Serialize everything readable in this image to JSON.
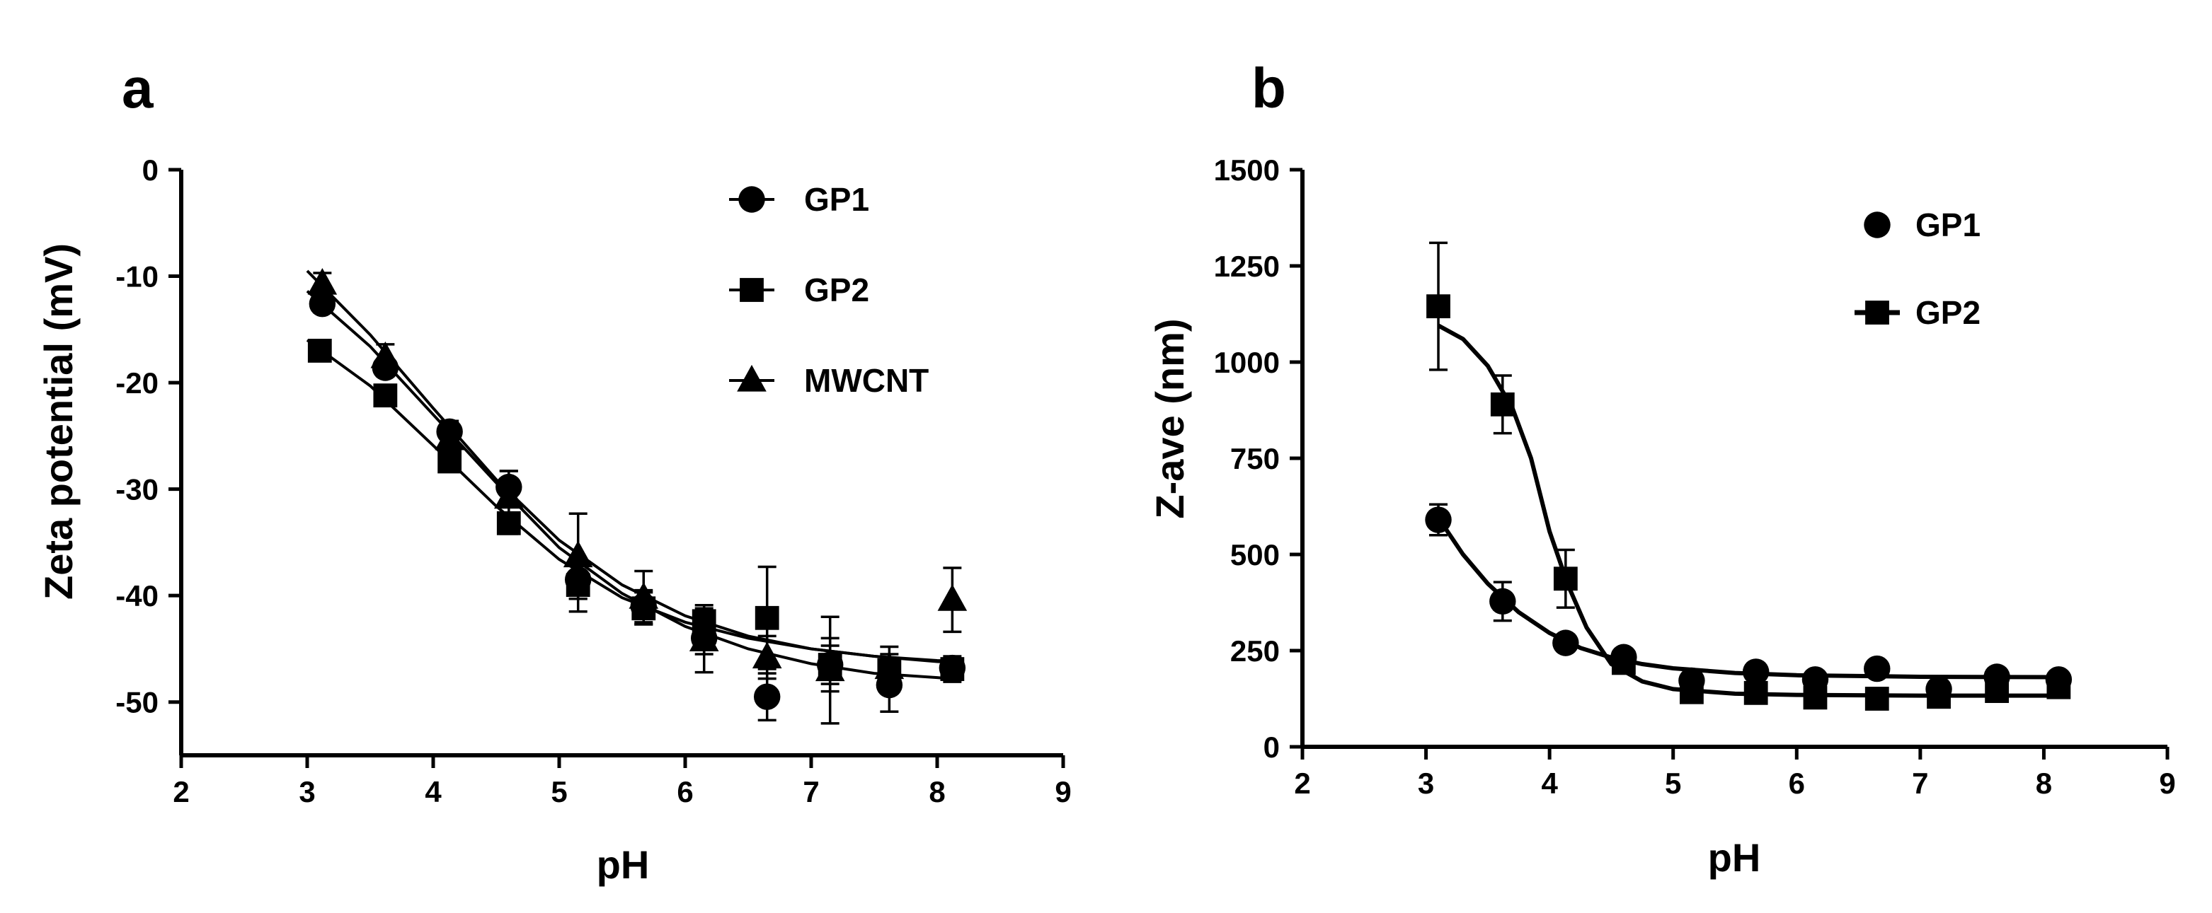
{
  "chart_data": [
    {
      "panel": "a",
      "type": "scatter",
      "xlabel": "pH",
      "ylabel": "Zeta potential (mV)",
      "xlim": [
        2,
        9
      ],
      "ylim": [
        -55,
        0
      ],
      "xticks": [
        2,
        3,
        4,
        5,
        6,
        7,
        8,
        9
      ],
      "yticks": [
        0,
        -10,
        -20,
        -30,
        -40,
        -50
      ],
      "legend_position": "top-right",
      "series": [
        {
          "name": "GP1",
          "marker": "circle",
          "legend_line": true,
          "x": [
            3.12,
            3.62,
            4.13,
            4.6,
            5.15,
            5.67,
            6.15,
            6.65,
            7.15,
            7.62,
            8.12
          ],
          "y": [
            -12.6,
            -18.6,
            -24.6,
            -29.8,
            -38.5,
            -41.0,
            -44.0,
            -49.5,
            -46.5,
            -48.4,
            -46.8
          ],
          "err": [
            0.8,
            0.8,
            1.0,
            1.5,
            1.8,
            1.5,
            1.5,
            2.2,
            2.5,
            2.5,
            0.8
          ],
          "fit": [
            [
              3.0,
              -11.4
            ],
            [
              3.5,
              -16.6
            ],
            [
              4.0,
              -23.0
            ],
            [
              4.5,
              -29.4
            ],
            [
              5.0,
              -35.5
            ],
            [
              5.5,
              -39.8
            ],
            [
              6.0,
              -42.9
            ],
            [
              6.5,
              -45.0
            ],
            [
              7.0,
              -46.4
            ],
            [
              7.5,
              -47.3
            ],
            [
              8.0,
              -47.7
            ],
            [
              8.2,
              -47.9
            ]
          ]
        },
        {
          "name": "GP2",
          "marker": "square",
          "legend_line": true,
          "x": [
            3.1,
            3.62,
            4.13,
            4.6,
            5.15,
            5.67,
            6.15,
            6.65,
            7.15,
            7.62,
            8.12
          ],
          "y": [
            -17.0,
            -21.2,
            -27.4,
            -33.2,
            -39.0,
            -41.2,
            -42.4,
            -42.1,
            -46.5,
            -47.0,
            -46.9
          ],
          "err": [
            0.5,
            0.5,
            0.8,
            1.0,
            2.5,
            1.5,
            1.5,
            4.8,
            1.8,
            1.5,
            1.2
          ],
          "fit": [
            [
              3.0,
              -16.0
            ],
            [
              3.5,
              -20.3
            ],
            [
              4.0,
              -25.9
            ],
            [
              4.5,
              -31.6
            ],
            [
              5.0,
              -36.6
            ],
            [
              5.5,
              -40.2
            ],
            [
              6.0,
              -42.5
            ],
            [
              6.5,
              -44.0
            ],
            [
              7.0,
              -45.0
            ],
            [
              7.5,
              -45.7
            ],
            [
              8.0,
              -46.1
            ],
            [
              8.2,
              -46.2
            ]
          ]
        },
        {
          "name": "MWCNT",
          "marker": "triangle",
          "legend_line": true,
          "x": [
            3.12,
            3.62,
            4.13,
            4.6,
            5.15,
            5.67,
            6.15,
            6.65,
            7.15,
            7.62,
            8.12
          ],
          "y": [
            -10.7,
            -17.6,
            -25.3,
            -30.8,
            -36.3,
            -40.2,
            -44.2,
            -45.8,
            -47.0,
            -46.8,
            -40.4
          ],
          "err": [
            1.0,
            1.2,
            1.2,
            2.5,
            4.0,
            2.5,
            3.0,
            2.0,
            5.0,
            2.0,
            3.0
          ],
          "fit": [
            [
              3.0,
              -9.5
            ],
            [
              3.5,
              -15.5
            ],
            [
              4.0,
              -22.4
            ],
            [
              4.5,
              -29.1
            ],
            [
              5.0,
              -34.8
            ],
            [
              5.5,
              -39.0
            ],
            [
              6.0,
              -41.9
            ],
            [
              6.5,
              -43.8
            ],
            [
              7.0,
              -45.0
            ],
            [
              7.5,
              -45.7
            ],
            [
              8.0,
              -46.2
            ],
            [
              8.2,
              -46.3
            ]
          ]
        }
      ]
    },
    {
      "panel": "b",
      "type": "scatter",
      "xlabel": "pH",
      "ylabel": "Z-ave (nm)",
      "xlim": [
        2,
        9
      ],
      "ylim": [
        0,
        1500
      ],
      "xticks": [
        2,
        3,
        4,
        5,
        6,
        7,
        8,
        9
      ],
      "yticks": [
        0,
        250,
        500,
        750,
        1000,
        1250,
        1500
      ],
      "legend_position": "top-right",
      "series": [
        {
          "name": "GP1",
          "marker": "circle",
          "legend_line": false,
          "x": [
            3.1,
            3.62,
            4.13,
            4.6,
            5.15,
            5.67,
            6.15,
            6.65,
            7.15,
            7.62,
            8.12
          ],
          "y": [
            590,
            378,
            270,
            233,
            172,
            195,
            175,
            203,
            150,
            182,
            175
          ],
          "err": [
            40,
            50,
            12,
            12,
            12,
            8,
            8,
            8,
            12,
            8,
            8
          ],
          "fit": [
            [
              3.1,
              595
            ],
            [
              3.3,
              500
            ],
            [
              3.5,
              424
            ],
            [
              3.75,
              350
            ],
            [
              4.0,
              296
            ],
            [
              4.25,
              257
            ],
            [
              4.5,
              232
            ],
            [
              4.75,
              215
            ],
            [
              5.0,
              204
            ],
            [
              5.5,
              192
            ],
            [
              6.0,
              186
            ],
            [
              7.0,
              182
            ],
            [
              8.12,
              181
            ]
          ]
        },
        {
          "name": "GP2",
          "marker": "square",
          "legend_line": true,
          "x": [
            3.1,
            3.62,
            4.13,
            4.6,
            5.15,
            5.67,
            6.15,
            6.65,
            7.15,
            7.62,
            8.12
          ],
          "y": [
            1145,
            890,
            437,
            218,
            142,
            140,
            128,
            125,
            130,
            145,
            155
          ],
          "err": [
            165,
            75,
            75,
            15,
            15,
            15,
            15,
            12,
            15,
            15,
            12
          ],
          "fit": [
            [
              3.1,
              1095
            ],
            [
              3.3,
              1060
            ],
            [
              3.5,
              990
            ],
            [
              3.7,
              880
            ],
            [
              3.85,
              750
            ],
            [
              4.0,
              560
            ],
            [
              4.15,
              420
            ],
            [
              4.3,
              310
            ],
            [
              4.5,
              215
            ],
            [
              4.75,
              170
            ],
            [
              5.0,
              150
            ],
            [
              5.5,
              138
            ],
            [
              6.0,
              135
            ],
            [
              7.0,
              133
            ],
            [
              8.12,
              133
            ]
          ]
        }
      ]
    }
  ],
  "panels": {
    "a": {
      "letter": "a",
      "xlabel": "pH",
      "ylabel": "Zeta potential (mV)",
      "legend": [
        "GP1",
        "GP2",
        "MWCNT"
      ]
    },
    "b": {
      "letter": "b",
      "xlabel": "pH",
      "ylabel": "Z-ave (nm)",
      "legend": [
        "GP1",
        "GP2"
      ]
    }
  }
}
